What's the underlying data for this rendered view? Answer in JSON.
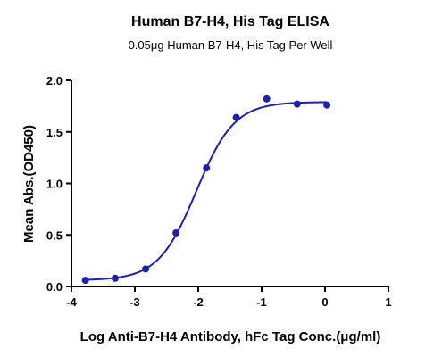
{
  "chart_data": {
    "type": "scatter",
    "title": "Human B7-H4, His Tag ELISA",
    "subtitle": "0.05μg Human B7-H4, His Tag Per Well",
    "xlabel": "Log Anti-B7-H4 Antibody, hFc Tag Conc.(μg/ml)",
    "ylabel": "Mean Abs.(OD450)",
    "xlim": [
      -4,
      1
    ],
    "ylim": [
      0,
      2.0
    ],
    "x_ticks": [
      -4,
      -3,
      -2,
      -1,
      0,
      1
    ],
    "x_tick_labels": [
      "-4",
      "-3",
      "-2",
      "-1",
      "0",
      "1"
    ],
    "y_ticks": [
      0.0,
      0.5,
      1.0,
      1.5,
      2.0
    ],
    "y_tick_labels": [
      "0.0",
      "0.5",
      "1.0",
      "1.5",
      "2.0"
    ],
    "grid": false,
    "fit_curve": true,
    "color": "#1f1fa8",
    "series": [
      {
        "x": [
          -3.78,
          -3.31,
          -2.83,
          -2.35,
          -1.87,
          -1.4,
          -0.92,
          -0.44,
          0.03
        ],
        "y": [
          0.06,
          0.08,
          0.17,
          0.52,
          1.15,
          1.64,
          1.82,
          1.77,
          1.76
        ]
      }
    ],
    "fit": {
      "bottom": 0.06,
      "top": 1.79,
      "log_ec50": -2.03,
      "hill_slope": 1.45
    }
  }
}
